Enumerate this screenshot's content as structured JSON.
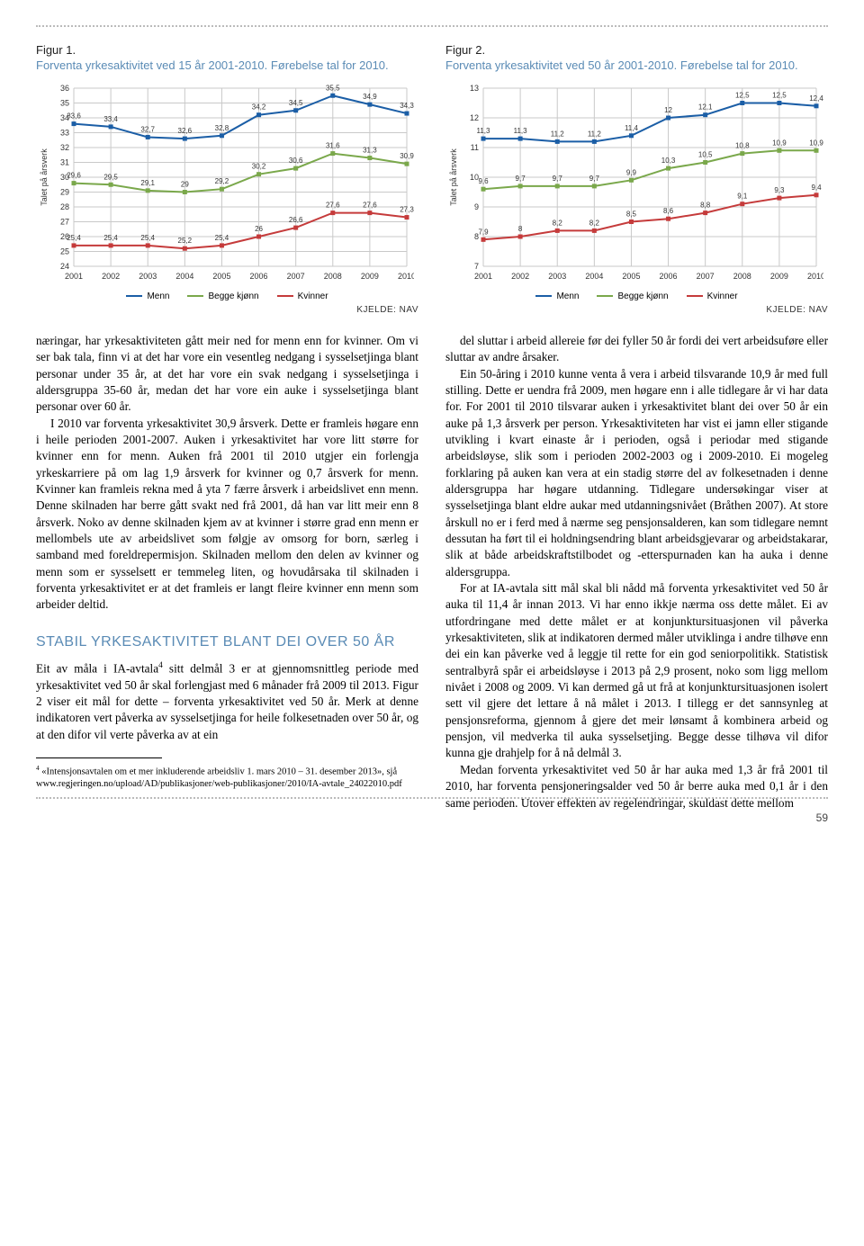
{
  "figure1": {
    "label": "Figur 1.",
    "title": "Forventa yrkesaktivitet ved 15 år 2001-2010. Førebelse tal for 2010.",
    "type": "line",
    "ylabel": "Talet på årsverk",
    "ylabel_fontsize": 9,
    "ylim": [
      24,
      36
    ],
    "ytick_step": 1,
    "xvals": [
      "2001",
      "2002",
      "2003",
      "2004",
      "2005",
      "2006",
      "2007",
      "2008",
      "2009",
      "2010"
    ],
    "series": [
      {
        "name": "Menn",
        "color": "#1b5ea6",
        "values": [
          33.6,
          33.4,
          32.7,
          32.6,
          32.8,
          34.2,
          34.5,
          35.5,
          34.9,
          34.3
        ]
      },
      {
        "name": "Begge kjønn",
        "color": "#7aa84b",
        "values": [
          29.6,
          29.5,
          29.1,
          29.0,
          29.2,
          30.2,
          30.6,
          31.6,
          31.3,
          30.9
        ]
      },
      {
        "name": "Kvinner",
        "color": "#c53b3b",
        "values": [
          25.4,
          25.4,
          25.4,
          25.2,
          25.4,
          26.0,
          26.6,
          27.6,
          27.6,
          27.3
        ]
      }
    ],
    "grid_color": "#c9c9c9",
    "background": "#ffffff",
    "label_fontsize": 9,
    "source": "KJELDE: NAV"
  },
  "figure2": {
    "label": "Figur 2.",
    "title": "Forventa yrkesaktivitet ved 50 år 2001-2010. Førebelse tal for 2010.",
    "type": "line",
    "ylabel": "Talet på årsverk",
    "ylabel_fontsize": 9,
    "ylim": [
      7,
      13
    ],
    "ytick_step": 1,
    "xvals": [
      "2001",
      "2002",
      "2003",
      "2004",
      "2005",
      "2006",
      "2007",
      "2008",
      "2009",
      "2010"
    ],
    "series": [
      {
        "name": "Menn",
        "color": "#1b5ea6",
        "values": [
          11.3,
          11.3,
          11.2,
          11.2,
          11.4,
          12.0,
          12.1,
          12.5,
          12.5,
          12.4
        ]
      },
      {
        "name": "Begge kjønn",
        "color": "#7aa84b",
        "values": [
          9.6,
          9.7,
          9.7,
          9.7,
          9.9,
          10.3,
          10.5,
          10.8,
          10.9,
          10.9
        ]
      },
      {
        "name": "Kvinner",
        "color": "#c53b3b",
        "values": [
          7.9,
          8.0,
          8.2,
          8.2,
          8.5,
          8.6,
          8.8,
          9.1,
          9.3,
          9.4
        ]
      }
    ],
    "grid_color": "#c9c9c9",
    "background": "#ffffff",
    "label_fontsize": 9,
    "source": "KJELDE: NAV"
  },
  "legend_items": [
    {
      "name": "Menn",
      "color": "#1b5ea6"
    },
    {
      "name": "Begge kjønn",
      "color": "#7aa84b"
    },
    {
      "name": "Kvinner",
      "color": "#c53b3b"
    }
  ],
  "body": {
    "p1": "næringar, har yrkesaktiviteten gått meir ned for menn enn for kvinner. Om vi ser bak tala, finn vi at det har vore ein vesentleg nedgang i sysselsetjinga blant personar under 35 år, at det har vore ein svak nedgang i sysselsetjinga i aldersgruppa 35-60 år, medan det har vore ein auke i sysselsetjinga blant personar over 60 år.",
    "p2": "I 2010 var forventa yrkesaktivitet 30,9 årsverk. Dette er framleis høgare enn i heile perioden 2001-2007. Auken i yrkesaktivitet har vore litt større for kvinner enn for menn. Auken frå 2001 til 2010 utgjer ein forlengja yrkeskarriere på om lag 1,9 årsverk for kvinner og 0,7 årsverk for menn. Kvinner kan framleis rekna med å yta 7 færre årsverk i arbeidslivet enn menn. Denne skilnaden har berre gått svakt ned frå 2001, då han var litt meir enn 8 årsverk. Noko av denne skilnaden kjem av at kvinner i større grad enn menn er mellombels ute av arbeidslivet som følgje av omsorg for born, særleg i samband med foreldrepermisjon. Skilnaden mellom den delen av kvinner og menn som er sysselsett er temmeleg liten, og hovudårsaka til skilnaden i forventa yrkesaktivitet er at det framleis er langt fleire kvinner enn menn som arbeider deltid.",
    "p3": "del sluttar i arbeid allereie før dei fyller 50 år fordi dei vert arbeidsuføre eller sluttar av andre årsaker.",
    "p4": "Ein 50-åring i 2010 kunne venta å vera i arbeid tilsvarande 10,9 år med full stilling. Dette er uendra frå 2009, men høgare enn i alle tidlegare år vi har data for. For 2001 til 2010 tilsvarar auken i yrkesaktivitet blant dei over 50 år ein auke på 1,3 årsverk per person. Yrkesaktiviteten har vist ei jamn eller stigande utvikling i kvart einaste år i perioden, også i periodar med stigande arbeidsløyse, slik som i perioden 2002-2003 og i 2009-2010. Ei mogeleg forklaring på auken kan vera at ein stadig større del av folkesetnaden i denne aldersgruppa har høgare utdanning. Tidlegare undersøkingar viser at sysselsetjinga blant eldre aukar med utdanningsnivået (Bråthen 2007). At store årskull no er i ferd med å nærme seg pensjonsalderen, kan som tidlegare nemnt dessutan ha ført til ei holdningsendring blant arbeidsgjevarar og arbeidstakarar, slik at både arbeidskraftstilbodet og -etterspurnaden kan ha auka i denne aldersgruppa.",
    "p5": "For at IA-avtala sitt mål skal bli nådd må forventa yrkesaktivitet ved 50 år auka til 11,4 år innan 2013. Vi har enno ikkje nærma oss dette målet. Ei av utfordringane med dette målet er at konjunktursituasjonen vil påverka yrkesaktiviteten, slik at indikatoren dermed måler utviklinga i andre tilhøve enn dei ein kan påverke ved å leggje til rette for ein god seniorpolitikk. Statistisk sentralbyrå spår ei arbeidsløyse i 2013 på 2,9 prosent, noko som ligg mellom nivået i 2008 og 2009. Vi kan dermed gå ut frå at konjunktursituasjonen isolert sett vil gjere det lettare å nå målet i 2013. I tillegg er det sannsynleg at pensjonsreforma, gjennom å gjere det meir lønsamt å kombinera arbeid og pensjon, vil medverka til auka sysselsetjing. Begge desse tilhøva vil difor kunna gje drahjelp for å nå delmål 3.",
    "p6": "Medan forventa yrkesaktivitet ved 50 år har auka med 1,3 år frå 2001 til 2010, har forventa pensjoneringsalder ved 50 år berre auka med 0,1 år i den same perioden. Utover effekten av regelendringar, skuldast dette mellom"
  },
  "section": {
    "heading": "STABIL YRKESAKTIVITET BLANT DEI OVER 50 ÅR",
    "p1_a": "Eit av måla i IA-avtala",
    "p1_b": " sitt delmål 3 er at gjennomsnittleg periode med yrkesaktivitet ved 50 år skal forlengjast med 6 månader frå 2009 til 2013. Figur 2 viser eit mål for dette – forventa yrkesaktivitet ved 50 år. Merk at denne indikatoren vert påverka av sysselsetjinga for heile folkesetnaden over 50 år, og at den difor vil verte påverka av at ein"
  },
  "footnote": {
    "num": "4",
    "text": " «Intensjonsavtalen om et mer inkluderende arbeidsliv 1. mars 2010 – 31. desember 2013», sjå www.regjeringen.no/upload/AD/publikasjoner/web-publikasjoner/2010/IA-avtale_24022010.pdf"
  },
  "page_number": "59"
}
